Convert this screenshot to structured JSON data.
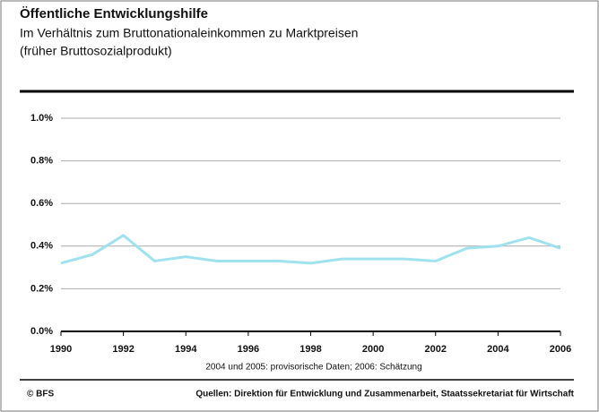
{
  "chart_data": {
    "type": "line",
    "title": "Öffentliche Entwicklungshilfe",
    "subtitle": [
      "Im Verhältnis zum Bruttonationaleinkommen zu Marktpreisen",
      "(früher Bruttosozialprodukt)"
    ],
    "note": "2004 und 2005: provisorische Daten; 2006: Schätzung",
    "footer_left": "© BFS",
    "footer_right": "Quellen: Direktion für Entwicklung und Zusammenarbeit, Staatssekretariat für Wirtschaft",
    "x": [
      1990,
      1991,
      1992,
      1993,
      1994,
      1995,
      1996,
      1997,
      1998,
      1999,
      2000,
      2001,
      2002,
      2003,
      2004,
      2005,
      2006
    ],
    "series": [
      {
        "color": "#9fe2ee",
        "values": [
          0.32,
          0.36,
          0.45,
          0.33,
          0.35,
          0.33,
          0.33,
          0.33,
          0.32,
          0.34,
          0.34,
          0.34,
          0.33,
          0.39,
          0.4,
          0.44,
          0.39
        ]
      }
    ],
    "xlim": [
      1990,
      2006
    ],
    "xticks": [
      1990,
      1992,
      1994,
      1996,
      1998,
      2000,
      2002,
      2004,
      2006
    ],
    "ylim": [
      0,
      1
    ],
    "yticks": [
      {
        "value": 0,
        "label": "0.0%"
      },
      {
        "value": 0.2,
        "label": "0.2%"
      },
      {
        "value": 0.4,
        "label": "0.4%"
      },
      {
        "value": 0.6,
        "label": "0.6%"
      },
      {
        "value": 0.8,
        "label": "0.8%"
      },
      {
        "value": 1,
        "label": "1.0%"
      }
    ],
    "grid": true
  }
}
